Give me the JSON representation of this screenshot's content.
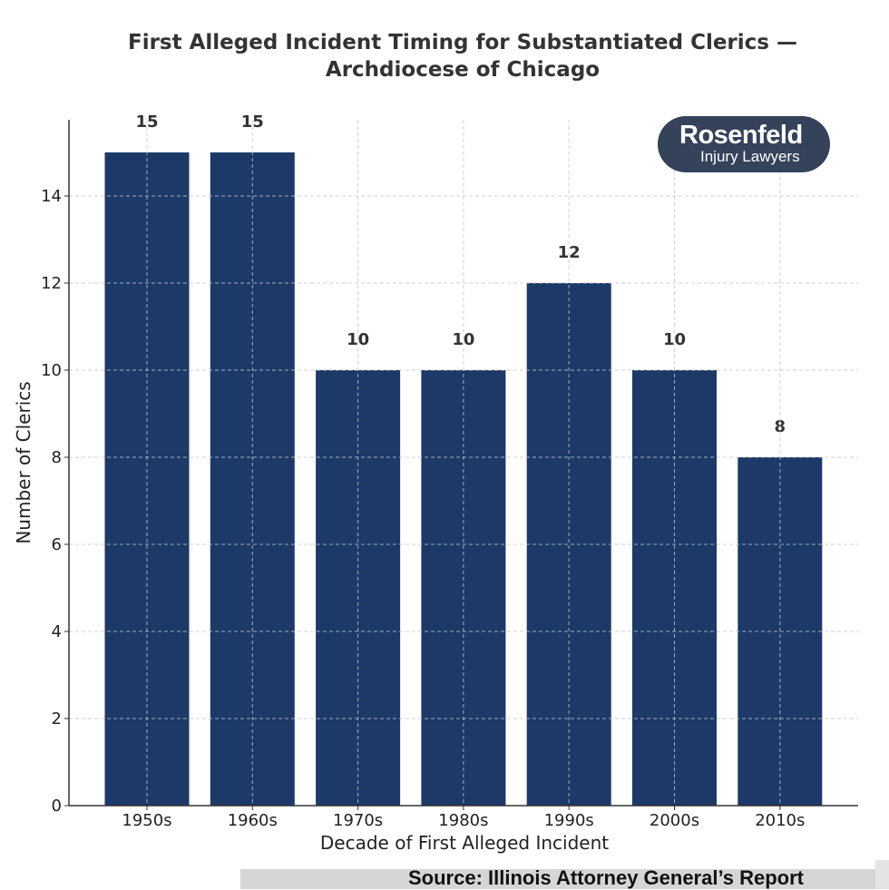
{
  "chart_data": {
    "type": "bar",
    "title": "First Alleged Incident Timing for Substantiated Clerics —\nArchdiocese of Chicago",
    "xlabel": "Decade of First Alleged Incident",
    "ylabel": "Number of Clerics",
    "categories": [
      "1950s",
      "1960s",
      "1970s",
      "1980s",
      "1990s",
      "2000s",
      "2010s"
    ],
    "values": [
      15,
      15,
      10,
      10,
      12,
      10,
      8
    ],
    "ylim": [
      0,
      15.75
    ],
    "yticks": [
      0,
      2,
      4,
      6,
      8,
      10,
      12,
      14
    ],
    "grid": true,
    "bar_color": "#1c3968",
    "data_labels": true
  },
  "logo": {
    "line1": "Rosenfeld",
    "line2": "Injury Lawyers"
  },
  "source": "Source: Illinois Attorney General’s Report"
}
